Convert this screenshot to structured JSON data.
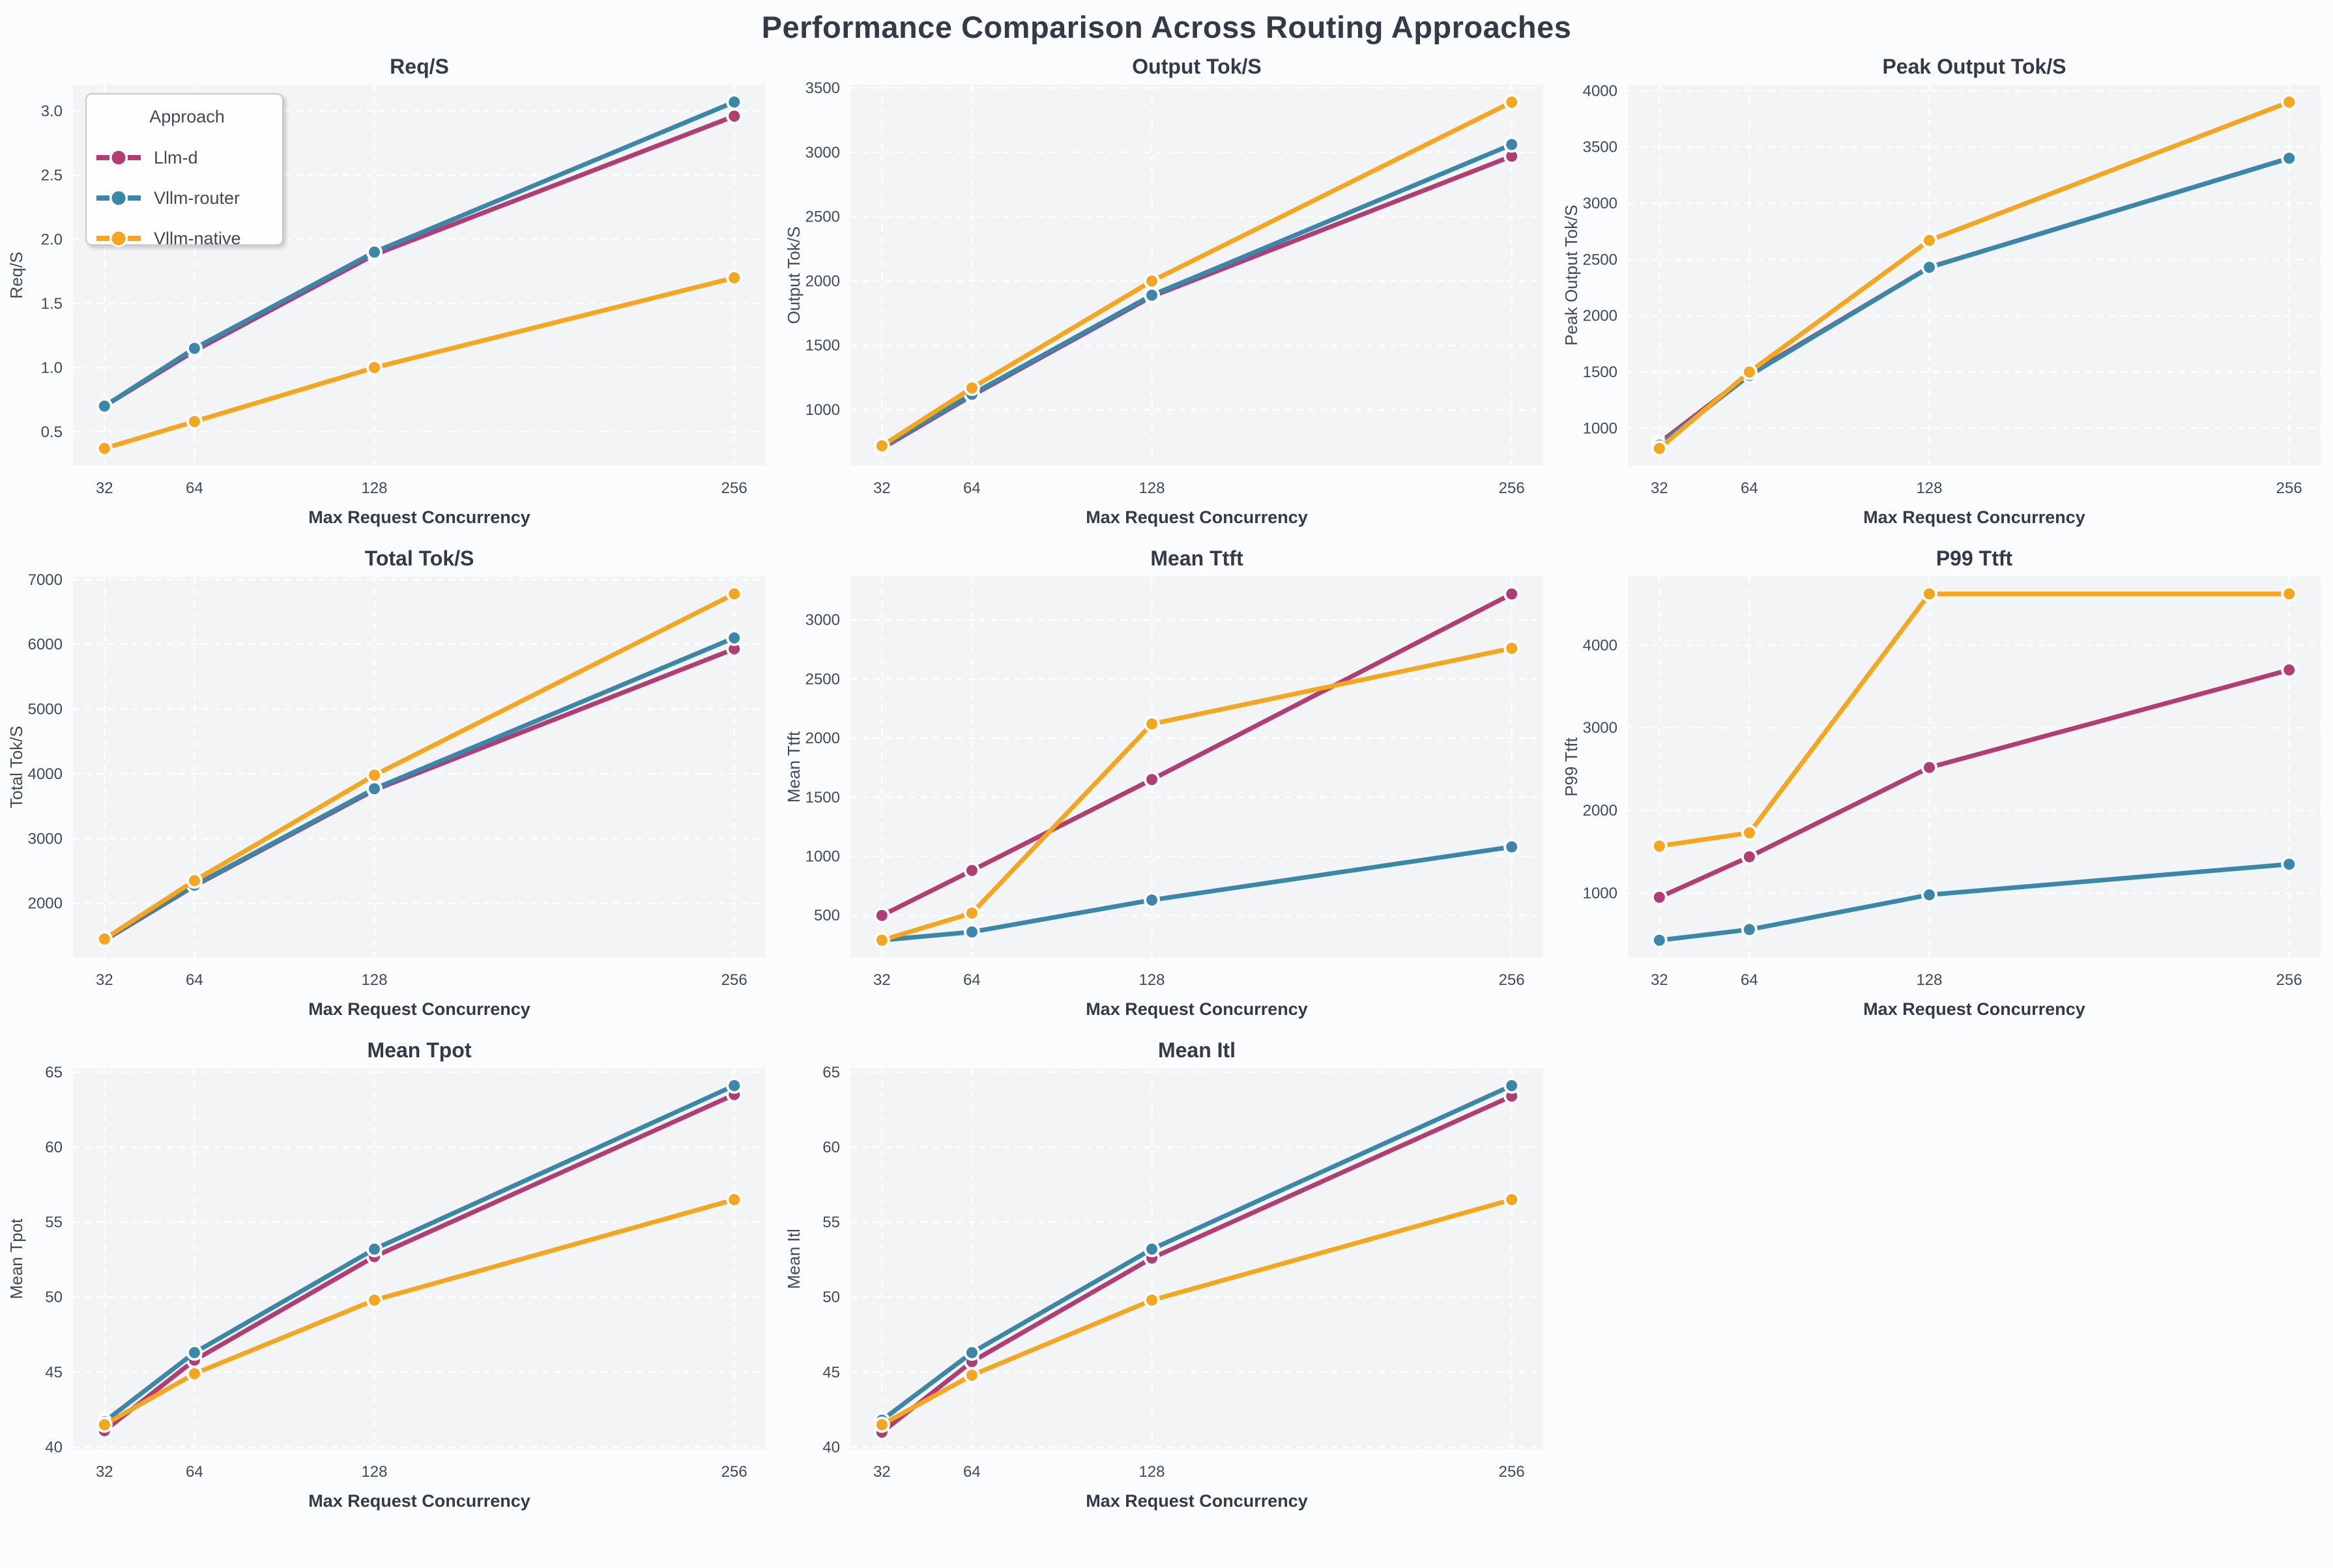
{
  "page": {
    "title": "Performance Comparison Across Routing Approaches"
  },
  "legend": {
    "title": "Approach",
    "entries": [
      "Llm-d",
      "Vllm-router",
      "Vllm-native"
    ]
  },
  "colors": {
    "llm_d": "#b13d73",
    "vllm_router": "#3a87a9",
    "vllm_native": "#f6a51f",
    "title_text": "#343b47",
    "tick_text": "#434956",
    "plot_bg": "#f3f4f6",
    "page_bg": "#fbfcfe",
    "grid_line": "#ffffff"
  },
  "chart_data": [
    {
      "type": "line",
      "title": "Req/S",
      "xlabel": "Max Request Concurrency",
      "ylabel": "Req/S",
      "x": [
        32,
        64,
        128,
        256
      ],
      "xticks": [
        32,
        64,
        128,
        256
      ],
      "xlim": [
        20.8,
        267.2
      ],
      "yticks": [
        0.5,
        1.0,
        1.5,
        2.0,
        2.5,
        3.0
      ],
      "ylim": [
        0.235,
        3.205
      ],
      "ydecimals": 1,
      "grid": true,
      "show_legend": true,
      "legend_position": "upper left",
      "series": [
        {
          "name": "Llm-d",
          "color": "#b13d73",
          "values": [
            0.7,
            1.13,
            1.88,
            2.96
          ]
        },
        {
          "name": "Vllm-router",
          "color": "#3a87a9",
          "values": [
            0.7,
            1.15,
            1.9,
            3.07
          ]
        },
        {
          "name": "Vllm-native",
          "color": "#f6a51f",
          "values": [
            0.37,
            0.58,
            1.0,
            1.7
          ]
        }
      ]
    },
    {
      "type": "line",
      "title": "Output Tok/S",
      "xlabel": "Max Request Concurrency",
      "ylabel": "Output Tok/S",
      "x": [
        32,
        64,
        128,
        256
      ],
      "xticks": [
        32,
        64,
        128,
        256
      ],
      "xlim": [
        20.8,
        267.2
      ],
      "yticks": [
        1000,
        1500,
        2000,
        2500,
        3000,
        3500
      ],
      "ylim": [
        565,
        3525
      ],
      "ydecimals": 0,
      "grid": true,
      "show_legend": false,
      "series": [
        {
          "name": "Llm-d",
          "color": "#b13d73",
          "values": [
            700,
            1110,
            1880,
            2970
          ]
        },
        {
          "name": "Vllm-router",
          "color": "#3a87a9",
          "values": [
            710,
            1120,
            1890,
            3060
          ]
        },
        {
          "name": "Vllm-native",
          "color": "#f6a51f",
          "values": [
            720,
            1170,
            2000,
            3390
          ]
        }
      ]
    },
    {
      "type": "line",
      "title": "Peak Output Tok/S",
      "xlabel": "Max Request Concurrency",
      "ylabel": "Peak Output Tok/S",
      "x": [
        32,
        64,
        128,
        256
      ],
      "xticks": [
        32,
        64,
        128,
        256
      ],
      "xlim": [
        20.8,
        267.2
      ],
      "yticks": [
        1000,
        1500,
        2000,
        2500,
        3000,
        3500,
        4000
      ],
      "ylim": [
        666,
        4054
      ],
      "ydecimals": 0,
      "grid": true,
      "show_legend": false,
      "series": [
        {
          "name": "Llm-d",
          "color": "#b13d73",
          "values": [
            870,
            1480,
            2430,
            3400
          ]
        },
        {
          "name": "Vllm-router",
          "color": "#3a87a9",
          "values": [
            850,
            1470,
            2430,
            3400
          ]
        },
        {
          "name": "Vllm-native",
          "color": "#f6a51f",
          "values": [
            820,
            1500,
            2670,
            3900
          ]
        }
      ]
    },
    {
      "type": "line",
      "title": "Total Tok/S",
      "xlabel": "Max Request Concurrency",
      "ylabel": "Total Tok/S",
      "x": [
        32,
        64,
        128,
        256
      ],
      "xticks": [
        32,
        64,
        128,
        256
      ],
      "xlim": [
        20.8,
        267.2
      ],
      "yticks": [
        2000,
        3000,
        4000,
        5000,
        6000,
        7000
      ],
      "ylim": [
        1162,
        7048
      ],
      "ydecimals": 0,
      "grid": true,
      "show_legend": false,
      "series": [
        {
          "name": "Llm-d",
          "color": "#b13d73",
          "values": [
            1430,
            2270,
            3750,
            5930
          ]
        },
        {
          "name": "Vllm-router",
          "color": "#3a87a9",
          "values": [
            1440,
            2280,
            3770,
            6100
          ]
        },
        {
          "name": "Vllm-native",
          "color": "#f6a51f",
          "values": [
            1450,
            2350,
            3980,
            6780
          ]
        }
      ]
    },
    {
      "type": "line",
      "title": "Mean Ttft",
      "xlabel": "Max Request Concurrency",
      "ylabel": "Mean Ttft",
      "x": [
        32,
        64,
        128,
        256
      ],
      "xticks": [
        32,
        64,
        128,
        256
      ],
      "xlim": [
        20.8,
        267.2
      ],
      "yticks": [
        500,
        1000,
        1500,
        2000,
        2500,
        3000
      ],
      "ylim": [
        143,
        3367
      ],
      "ydecimals": 0,
      "grid": true,
      "show_legend": false,
      "series": [
        {
          "name": "Llm-d",
          "color": "#b13d73",
          "values": [
            500,
            880,
            1650,
            3220
          ]
        },
        {
          "name": "Vllm-router",
          "color": "#3a87a9",
          "values": [
            290,
            360,
            630,
            1080
          ]
        },
        {
          "name": "Vllm-native",
          "color": "#f6a51f",
          "values": [
            290,
            520,
            2120,
            2760
          ]
        }
      ]
    },
    {
      "type": "line",
      "title": "P99 Ttft",
      "xlabel": "Max Request Concurrency",
      "ylabel": "P99 Ttft",
      "x": [
        32,
        64,
        128,
        256
      ],
      "xticks": [
        32,
        64,
        128,
        256
      ],
      "xlim": [
        20.8,
        267.2
      ],
      "yticks": [
        1000,
        2000,
        3000,
        4000
      ],
      "ylim": [
        220,
        4830
      ],
      "ydecimals": 0,
      "grid": true,
      "show_legend": false,
      "series": [
        {
          "name": "Llm-d",
          "color": "#b13d73",
          "values": [
            950,
            1440,
            2520,
            3700
          ]
        },
        {
          "name": "Vllm-router",
          "color": "#3a87a9",
          "values": [
            430,
            560,
            980,
            1350
          ]
        },
        {
          "name": "Vllm-native",
          "color": "#f6a51f",
          "values": [
            1570,
            1730,
            4620,
            4620
          ]
        }
      ]
    },
    {
      "type": "line",
      "title": "Mean Tpot",
      "xlabel": "Max Request Concurrency",
      "ylabel": "Mean Tpot",
      "x": [
        32,
        64,
        128,
        256
      ],
      "xticks": [
        32,
        64,
        128,
        256
      ],
      "xlim": [
        20.8,
        267.2
      ],
      "yticks": [
        40,
        45,
        50,
        55,
        60,
        65
      ],
      "ylim": [
        39.85,
        65.25
      ],
      "ydecimals": 0,
      "grid": true,
      "show_legend": false,
      "series": [
        {
          "name": "Llm-d",
          "color": "#b13d73",
          "values": [
            41.1,
            45.8,
            52.7,
            63.5
          ]
        },
        {
          "name": "Vllm-router",
          "color": "#3a87a9",
          "values": [
            41.7,
            46.3,
            53.2,
            64.1
          ]
        },
        {
          "name": "Vllm-native",
          "color": "#f6a51f",
          "values": [
            41.5,
            44.9,
            49.8,
            56.5
          ]
        }
      ]
    },
    {
      "type": "line",
      "title": "Mean Itl",
      "xlabel": "Max Request Concurrency",
      "ylabel": "Mean Itl",
      "x": [
        32,
        64,
        128,
        256
      ],
      "xticks": [
        32,
        64,
        128,
        256
      ],
      "xlim": [
        20.8,
        267.2
      ],
      "yticks": [
        40,
        45,
        50,
        55,
        60,
        65
      ],
      "ylim": [
        39.85,
        65.25
      ],
      "ydecimals": 0,
      "grid": true,
      "show_legend": false,
      "series": [
        {
          "name": "Llm-d",
          "color": "#b13d73",
          "values": [
            41.0,
            45.7,
            52.6,
            63.4
          ]
        },
        {
          "name": "Vllm-router",
          "color": "#3a87a9",
          "values": [
            41.8,
            46.3,
            53.2,
            64.1
          ]
        },
        {
          "name": "Vllm-native",
          "color": "#f6a51f",
          "values": [
            41.5,
            44.8,
            49.8,
            56.5
          ]
        }
      ]
    }
  ]
}
